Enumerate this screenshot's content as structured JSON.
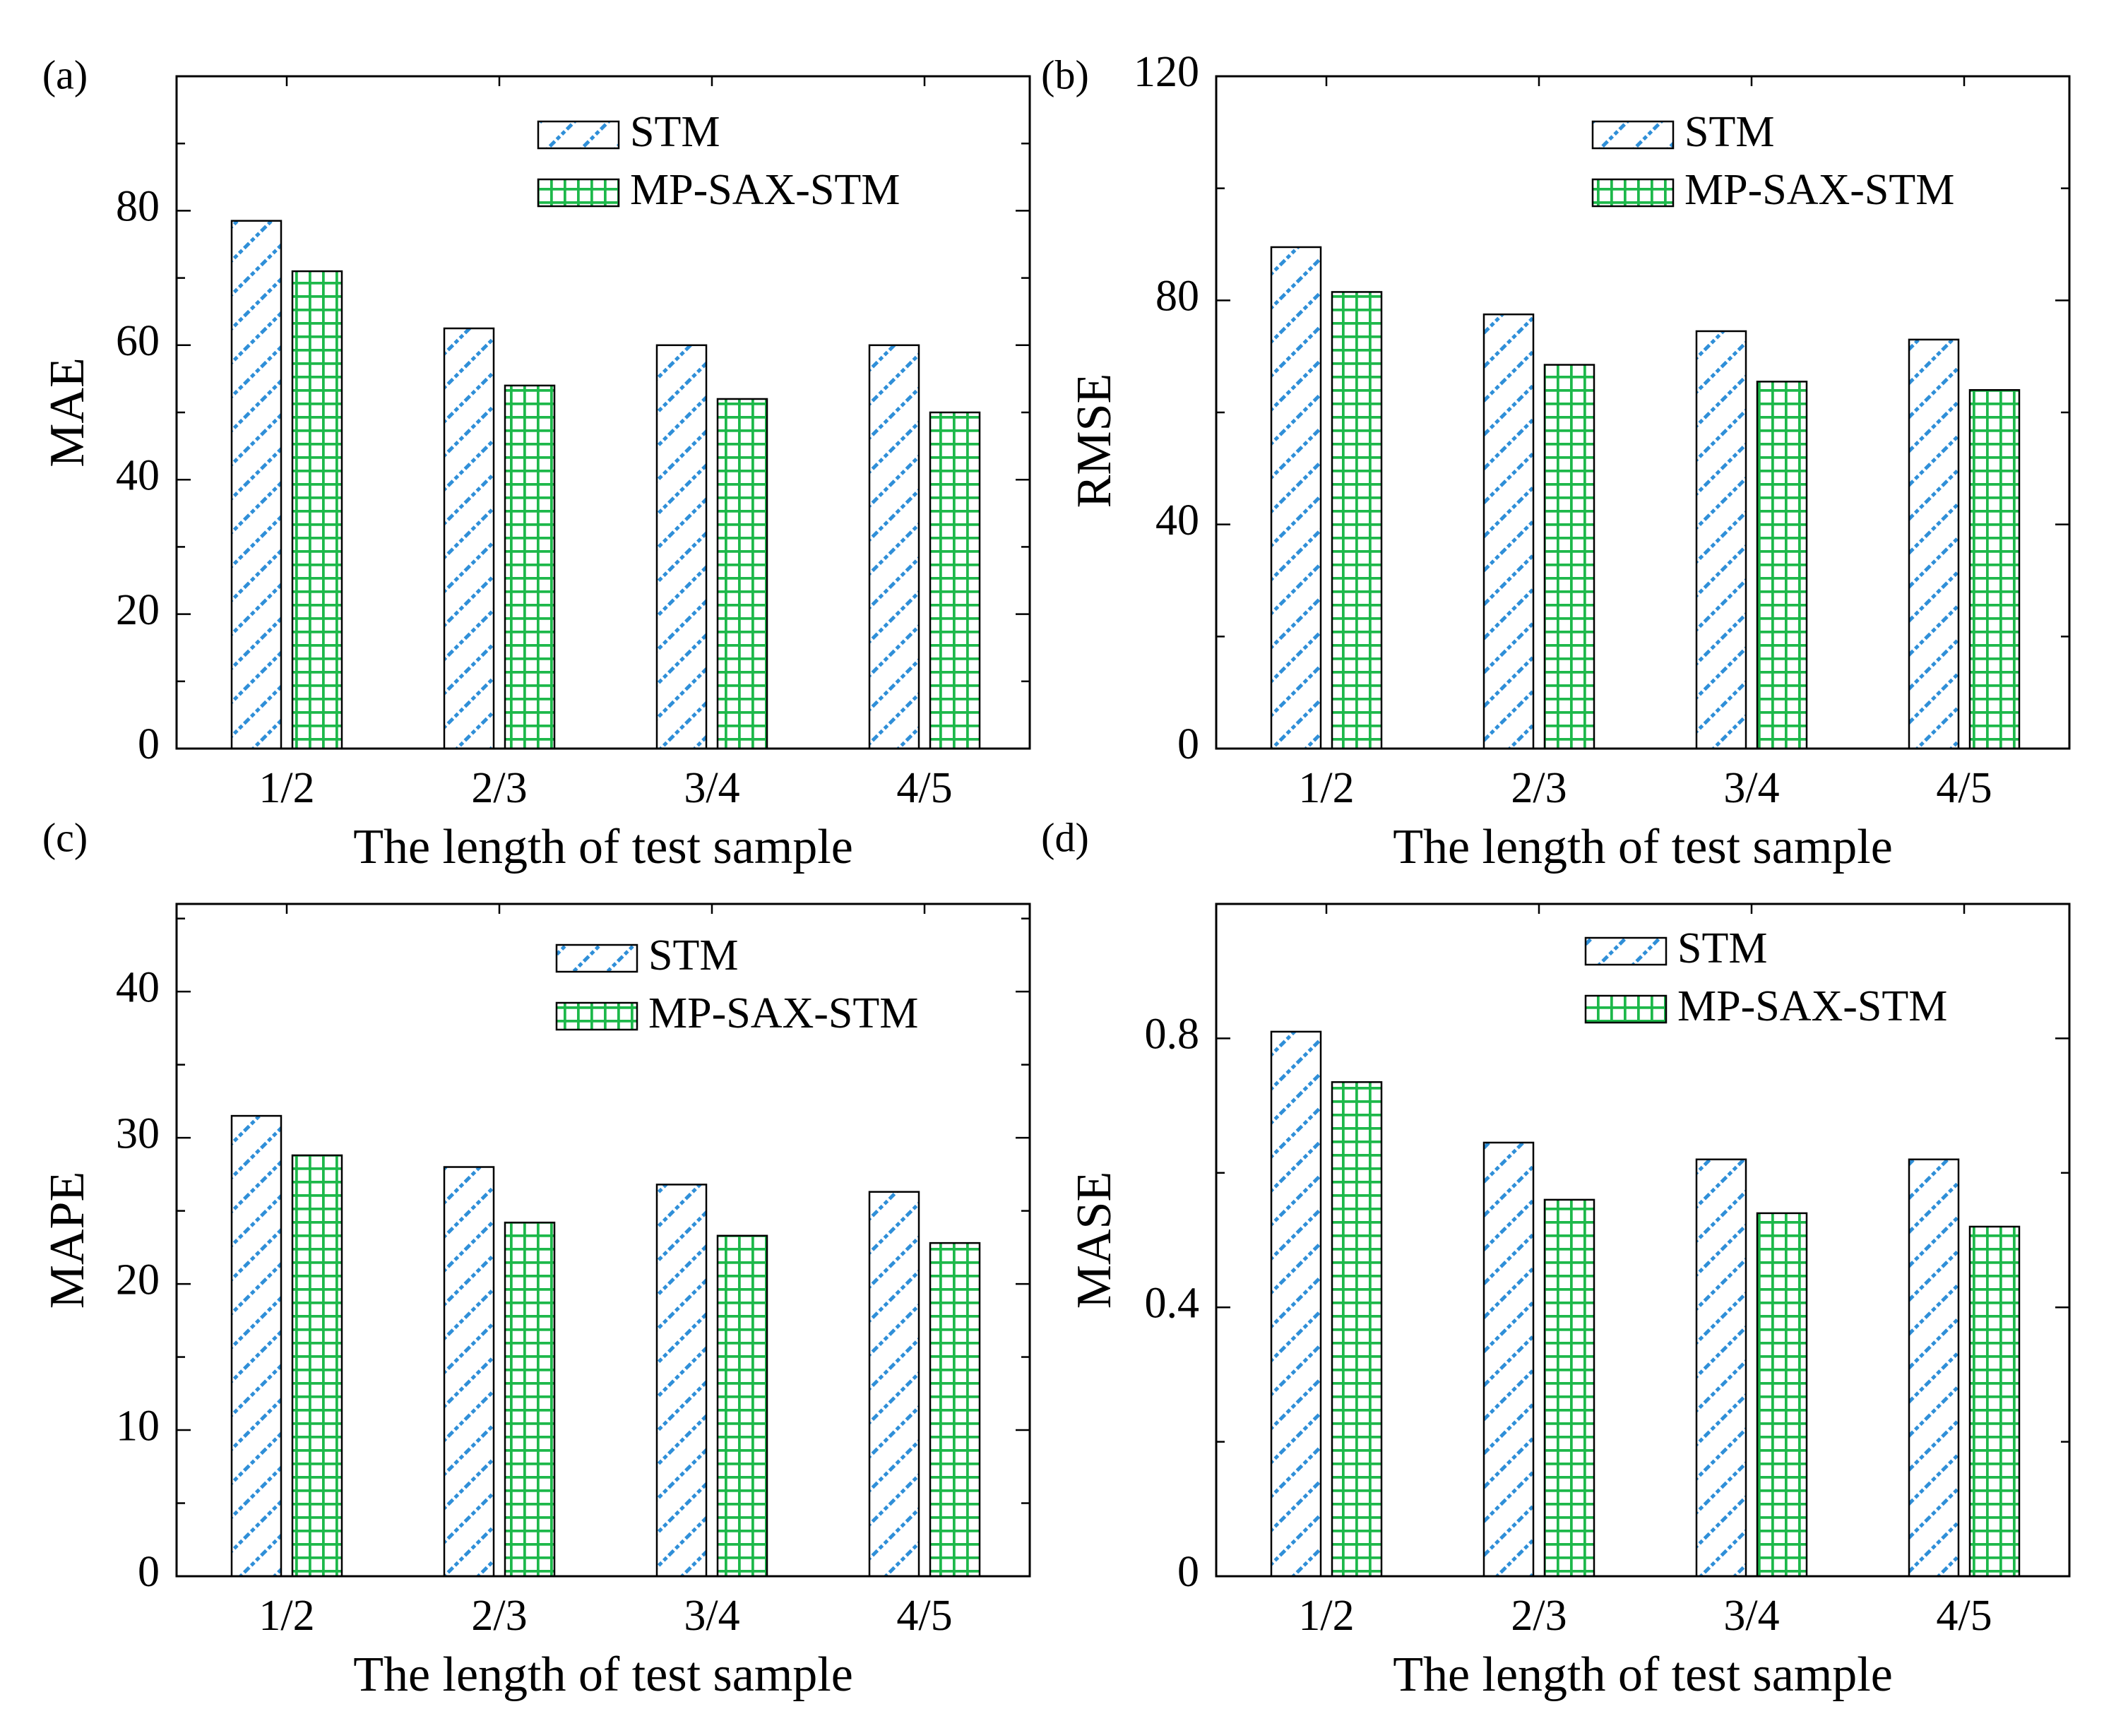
{
  "chart_data": [
    {
      "panel": "(a)",
      "type": "bar",
      "categories": [
        "1/2",
        "2/3",
        "3/4",
        "4/5"
      ],
      "series": [
        {
          "name": "STM",
          "values": [
            78.5,
            62.5,
            60,
            60
          ]
        },
        {
          "name": "MP-SAX-STM",
          "values": [
            71,
            54,
            52,
            50
          ]
        }
      ],
      "xlabel": "The length of test sample",
      "ylabel": "MAE",
      "ylim": [
        0,
        100
      ],
      "yticks": [
        0,
        20,
        40,
        60,
        80
      ],
      "legend": "top-right",
      "grid": false
    },
    {
      "panel": "(b)",
      "type": "bar",
      "categories": [
        "1/2",
        "2/3",
        "3/4",
        "4/5"
      ],
      "series": [
        {
          "name": "STM",
          "values": [
            89.5,
            77.5,
            74.5,
            73
          ]
        },
        {
          "name": "MP-SAX-STM",
          "values": [
            81.5,
            68.5,
            65.5,
            64
          ]
        }
      ],
      "xlabel": "The length of test sample",
      "ylabel": "RMSE",
      "ylim": [
        0,
        120
      ],
      "yticks": [
        0,
        40,
        80,
        120
      ],
      "legend": "top-right",
      "grid": false
    },
    {
      "panel": "(c)",
      "type": "bar",
      "categories": [
        "1/2",
        "2/3",
        "3/4",
        "4/5"
      ],
      "series": [
        {
          "name": "STM",
          "values": [
            31.5,
            28,
            26.8,
            26.3
          ]
        },
        {
          "name": "MP-SAX-STM",
          "values": [
            28.8,
            24.2,
            23.3,
            22.8
          ]
        }
      ],
      "xlabel": "The length of test sample",
      "ylabel": "MAPE",
      "ylim": [
        0,
        46
      ],
      "yticks": [
        0,
        10,
        20,
        30,
        40
      ],
      "legend": "top-right",
      "grid": false
    },
    {
      "panel": "(d)",
      "type": "bar",
      "categories": [
        "1/2",
        "2/3",
        "3/4",
        "4/5"
      ],
      "series": [
        {
          "name": "STM",
          "values": [
            0.81,
            0.645,
            0.62,
            0.62
          ]
        },
        {
          "name": "MP-SAX-STM",
          "values": [
            0.735,
            0.56,
            0.54,
            0.52
          ]
        }
      ],
      "xlabel": "The length of test sample",
      "ylabel": "MASE",
      "ylim": [
        0,
        1.0
      ],
      "yticks": [
        0,
        0.4,
        0.8
      ],
      "legend": "top-right",
      "grid": false
    }
  ],
  "colors": {
    "stm_stripe": "#2f8fd8",
    "stm_bg": "#ffffff",
    "mp_fill": "#ffffff",
    "mp_grid": "#1db84a"
  }
}
